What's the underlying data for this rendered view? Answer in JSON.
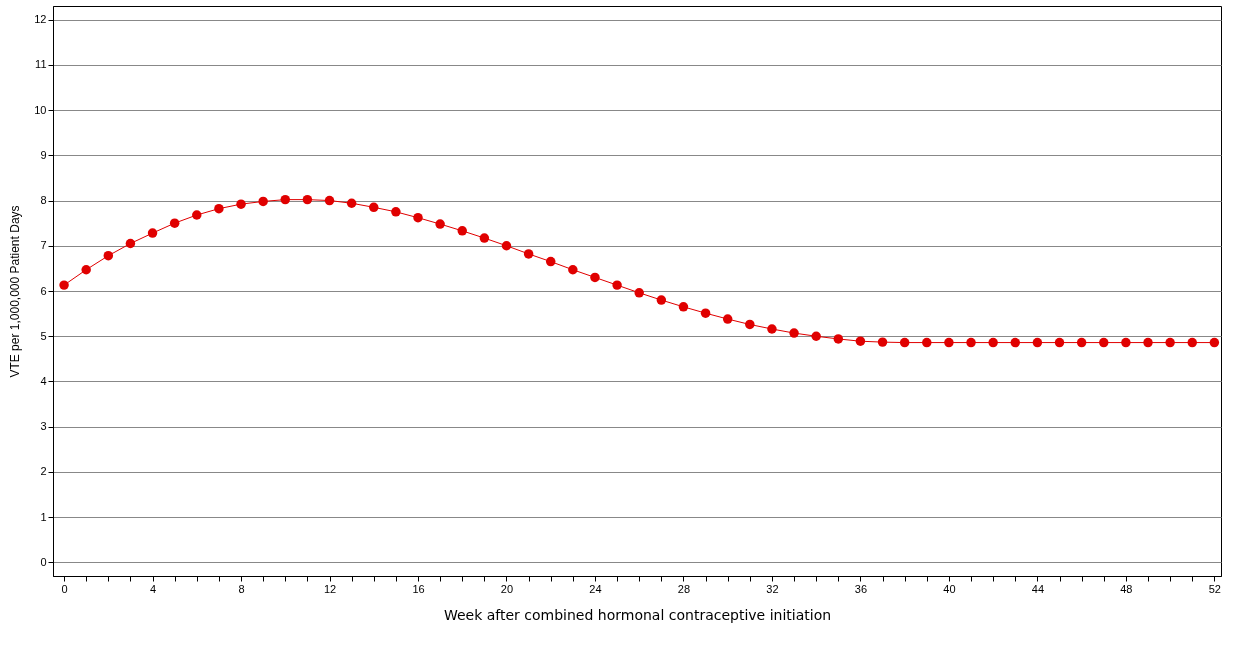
{
  "chart_data": {
    "type": "line",
    "xlabel": "Week after combined hormonal contraceptive initiation",
    "ylabel": "VTE per 1,000,000 Patient Days",
    "x": [
      0,
      1,
      2,
      3,
      4,
      5,
      6,
      7,
      8,
      9,
      10,
      11,
      12,
      13,
      14,
      15,
      16,
      17,
      18,
      19,
      20,
      21,
      22,
      23,
      24,
      25,
      26,
      27,
      28,
      29,
      30,
      31,
      32,
      33,
      34,
      35,
      36,
      37,
      38,
      39,
      40,
      41,
      42,
      43,
      44,
      45,
      46,
      47,
      48,
      49,
      50,
      51,
      52
    ],
    "series": [
      {
        "color": "#e00000",
        "values": [
          6.13,
          6.47,
          6.78,
          7.05,
          7.28,
          7.5,
          7.68,
          7.82,
          7.92,
          7.98,
          8.02,
          8.02,
          8.0,
          7.94,
          7.85,
          7.75,
          7.62,
          7.48,
          7.33,
          7.17,
          7.0,
          6.82,
          6.65,
          6.47,
          6.3,
          6.13,
          5.96,
          5.8,
          5.65,
          5.51,
          5.38,
          5.26,
          5.16,
          5.07,
          5.0,
          4.94,
          4.89,
          4.87,
          4.86,
          4.86,
          4.86,
          4.86,
          4.86,
          4.86,
          4.86,
          4.86,
          4.86,
          4.86,
          4.86,
          4.86,
          4.86,
          4.86,
          4.86
        ]
      }
    ],
    "xlim": [
      -0.5,
      52.3
    ],
    "ylim": [
      -0.3,
      12.3
    ],
    "xticks": [
      0,
      {
        "value": 1,
        "label": null
      },
      {
        "value": 2,
        "label": null
      },
      {
        "value": 3,
        "label": null
      },
      4,
      {
        "value": 5,
        "label": null
      },
      {
        "value": 6,
        "label": null
      },
      {
        "value": 7,
        "label": null
      },
      8,
      {
        "value": 9,
        "label": null
      },
      {
        "value": 10,
        "label": null
      },
      {
        "value": 11,
        "label": null
      },
      12,
      {
        "value": 13,
        "label": null
      },
      {
        "value": 14,
        "label": null
      },
      {
        "value": 15,
        "label": null
      },
      16,
      {
        "value": 17,
        "label": null
      },
      {
        "value": 18,
        "label": null
      },
      {
        "value": 19,
        "label": null
      },
      20,
      {
        "value": 21,
        "label": null
      },
      {
        "value": 22,
        "label": null
      },
      {
        "value": 23,
        "label": null
      },
      24,
      {
        "value": 25,
        "label": null
      },
      {
        "value": 26,
        "label": null
      },
      {
        "value": 27,
        "label": null
      },
      28,
      {
        "value": 29,
        "label": null
      },
      {
        "value": 30,
        "label": null
      },
      {
        "value": 31,
        "label": null
      },
      32,
      {
        "value": 33,
        "label": null
      },
      {
        "value": 34,
        "label": null
      },
      {
        "value": 35,
        "label": null
      },
      36,
      {
        "value": 37,
        "label": null
      },
      {
        "value": 38,
        "label": null
      },
      {
        "value": 39,
        "label": null
      },
      40,
      {
        "value": 41,
        "label": null
      },
      {
        "value": 42,
        "label": null
      },
      {
        "value": 43,
        "label": null
      },
      44,
      {
        "value": 45,
        "label": null
      },
      {
        "value": 46,
        "label": null
      },
      {
        "value": 47,
        "label": null
      },
      48,
      {
        "value": 49,
        "label": null
      },
      {
        "value": 50,
        "label": null
      },
      {
        "value": 51,
        "label": null
      },
      52
    ],
    "yticks": [
      0,
      1,
      2,
      3,
      4,
      5,
      6,
      7,
      8,
      9,
      10,
      11,
      12
    ],
    "grid": "y",
    "marker": "circle",
    "line_style": "solid"
  }
}
